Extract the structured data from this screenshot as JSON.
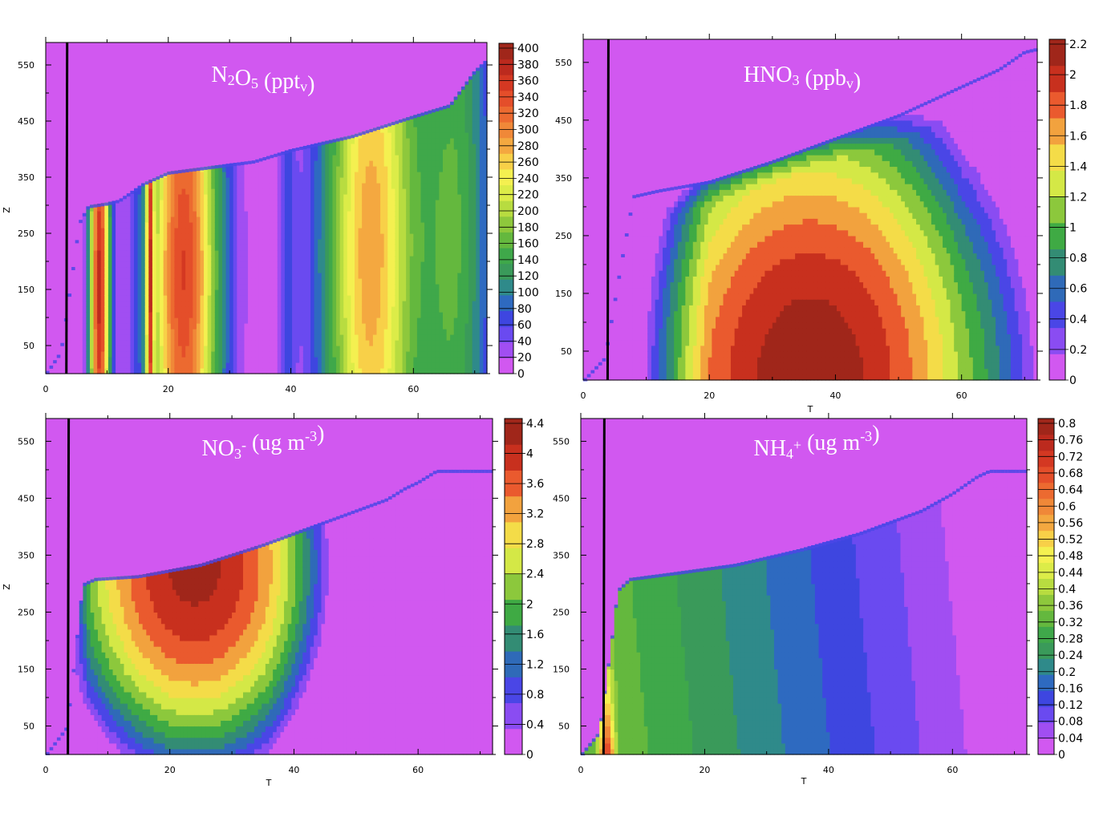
{
  "chart_data": [
    {
      "type": "heatmap",
      "title": "N₂O₅ (pptᵥ)",
      "title_parts": [
        {
          "text": "N",
          "script": "normal"
        },
        {
          "text": "2",
          "script": "sub"
        },
        {
          "text": "O",
          "script": "normal"
        },
        {
          "text": "5",
          "script": "sub"
        },
        {
          "text": " (ppt",
          "script": "normal"
        },
        {
          "text": "v",
          "script": "sub"
        },
        {
          "text": ")",
          "script": "normal"
        }
      ],
      "xlabel": "",
      "ylabel": "Z",
      "xlim": [
        0,
        72
      ],
      "ylim": [
        0,
        590
      ],
      "x_ticks": [
        0,
        20,
        40,
        60
      ],
      "y_ticks": [
        50,
        150,
        250,
        350,
        450,
        550
      ],
      "colorbar_ticks": [
        "400",
        "380",
        "360",
        "340",
        "320",
        "300",
        "280",
        "260",
        "240",
        "220",
        "200",
        "180",
        "160",
        "140",
        "120",
        "100",
        "80",
        "60",
        "40",
        "20",
        "0"
      ],
      "colorbar_range": [
        0,
        410
      ],
      "vertical_line_x": 3.5,
      "top_boundary": [
        [
          0,
          0
        ],
        [
          2.5,
          40
        ],
        [
          4,
          150
        ],
        [
          5.5,
          270
        ],
        [
          7,
          300
        ],
        [
          10,
          305
        ],
        [
          12,
          310
        ],
        [
          16,
          340
        ],
        [
          20,
          360
        ],
        [
          34,
          380
        ],
        [
          40,
          400
        ],
        [
          50,
          425
        ],
        [
          60,
          460
        ],
        [
          66,
          480
        ],
        [
          70,
          540
        ],
        [
          72,
          560
        ]
      ],
      "notes": "Vertical banded structure in T; peaks near T=9 and T=23 (~330-380), secondary yellow band near T=53 (~280)"
    },
    {
      "type": "heatmap",
      "title": "HNO₃ (ppbᵥ)",
      "title_parts": [
        {
          "text": "HNO",
          "script": "normal"
        },
        {
          "text": "3",
          "script": "sub"
        },
        {
          "text": " (ppb",
          "script": "normal"
        },
        {
          "text": "v",
          "script": "sub"
        },
        {
          "text": ")",
          "script": "normal"
        }
      ],
      "xlabel": "T",
      "ylabel": "",
      "xlim": [
        0,
        72
      ],
      "ylim": [
        0,
        590
      ],
      "x_ticks": [
        0,
        20,
        40,
        60
      ],
      "y_ticks": [
        50,
        150,
        250,
        350,
        450,
        550
      ],
      "colorbar_ticks": [
        "2.2",
        "2",
        "1.8",
        "1.6",
        "1.4",
        "1.2",
        "1",
        "0.8",
        "0.6",
        "0.4",
        "0.2",
        "0"
      ],
      "colorbar_range": [
        0,
        2.3
      ],
      "vertical_line_x": 4,
      "top_boundary": [
        [
          0,
          0
        ],
        [
          3.5,
          40
        ],
        [
          6,
          200
        ],
        [
          8,
          320
        ],
        [
          12,
          330
        ],
        [
          20,
          345
        ],
        [
          30,
          380
        ],
        [
          40,
          420
        ],
        [
          50,
          460
        ],
        [
          60,
          510
        ],
        [
          66,
          540
        ],
        [
          70,
          570
        ],
        [
          72,
          575
        ]
      ],
      "notes": "Maximum ~2.2 near T=36 at low Z, decreasing outward and upward"
    },
    {
      "type": "heatmap",
      "title": "NO₃⁻ (ug m⁻³)",
      "title_parts": [
        {
          "text": "NO",
          "script": "normal"
        },
        {
          "text": "3",
          "script": "sub"
        },
        {
          "text": "-",
          "script": "sup"
        },
        {
          "text": " (ug m",
          "script": "normal"
        },
        {
          "text": "-3",
          "script": "sup"
        },
        {
          "text": ")",
          "script": "normal"
        }
      ],
      "xlabel": "T",
      "ylabel": "Z",
      "xlim": [
        0,
        72
      ],
      "ylim": [
        0,
        590
      ],
      "x_ticks": [
        0,
        20,
        40,
        60
      ],
      "y_ticks": [
        50,
        150,
        250,
        350,
        450,
        550
      ],
      "colorbar_ticks": [
        "4.4",
        "4",
        "3.6",
        "3.2",
        "2.8",
        "2.4",
        "2",
        "1.6",
        "1.2",
        "0.8",
        "0.4",
        "0"
      ],
      "colorbar_range": [
        0,
        4.4
      ],
      "vertical_line_x": 3.7,
      "top_boundary": [
        [
          0,
          0
        ],
        [
          3.5,
          50
        ],
        [
          5,
          200
        ],
        [
          6,
          300
        ],
        [
          8,
          310
        ],
        [
          15,
          315
        ],
        [
          25,
          335
        ],
        [
          35,
          370
        ],
        [
          45,
          410
        ],
        [
          55,
          450
        ],
        [
          58,
          470
        ],
        [
          60,
          480
        ],
        [
          63,
          500
        ],
        [
          64,
          500
        ]
      ],
      "notes": "Maximum ~4.3 near T=24, Z=330, decreasing away"
    },
    {
      "type": "heatmap",
      "title": "NH₄⁺ (ug m⁻³)",
      "title_parts": [
        {
          "text": "NH",
          "script": "normal"
        },
        {
          "text": "4",
          "script": "sub"
        },
        {
          "text": "+",
          "script": "sup"
        },
        {
          "text": " (ug m",
          "script": "normal"
        },
        {
          "text": "-3",
          "script": "sup"
        },
        {
          "text": ")",
          "script": "normal"
        }
      ],
      "xlabel": "T",
      "ylabel": "",
      "xlim": [
        0,
        72
      ],
      "ylim": [
        0,
        590
      ],
      "x_ticks": [
        0,
        20,
        40,
        60
      ],
      "y_ticks": [
        50,
        150,
        250,
        350,
        450,
        550
      ],
      "colorbar_ticks": [
        "0.8",
        "0.76",
        "0.72",
        "0.68",
        "0.64",
        "0.6",
        "0.56",
        "0.52",
        "0.48",
        "0.44",
        "0.4",
        "0.36",
        "0.32",
        "0.28",
        "0.24",
        "0.2",
        "0.16",
        "0.12",
        "0.08",
        "0.04",
        "0"
      ],
      "colorbar_range": [
        0,
        0.82
      ],
      "vertical_line_x": 3.8,
      "top_boundary": [
        [
          0,
          0
        ],
        [
          3,
          40
        ],
        [
          5,
          200
        ],
        [
          6,
          290
        ],
        [
          8,
          310
        ],
        [
          15,
          320
        ],
        [
          25,
          335
        ],
        [
          35,
          360
        ],
        [
          45,
          390
        ],
        [
          55,
          430
        ],
        [
          60,
          460
        ],
        [
          64,
          490
        ],
        [
          66,
          500
        ],
        [
          67,
          500
        ]
      ],
      "notes": "Maximum ~0.72 at T~4, low Z; values ~0.3 in middle, decreasing to ~0.04 toward T=65"
    }
  ]
}
